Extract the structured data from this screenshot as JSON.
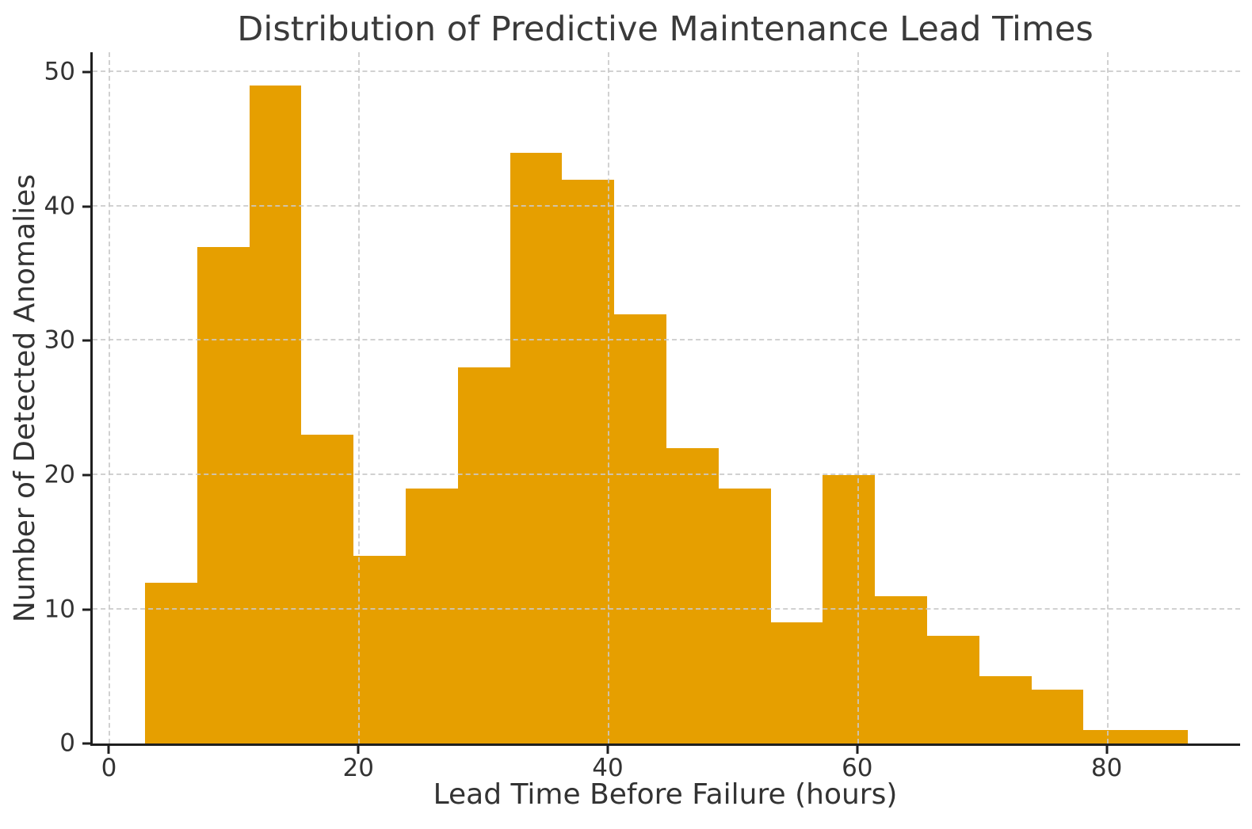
{
  "chart_data": {
    "type": "bar",
    "subtype": "histogram",
    "title": "Distribution of Predictive Maintenance Lead Times",
    "xlabel": "Lead Time Before Failure (hours)",
    "ylabel": "Number of Detected Anomalies",
    "bin_edges": [
      2.9,
      7.1,
      11.3,
      15.4,
      19.6,
      23.8,
      28.0,
      32.2,
      36.3,
      40.5,
      44.7,
      48.9,
      53.1,
      57.2,
      61.4,
      65.6,
      69.8,
      74.0,
      78.1,
      82.3,
      86.5
    ],
    "counts": [
      12,
      37,
      49,
      23,
      14,
      19,
      28,
      44,
      42,
      32,
      22,
      19,
      9,
      20,
      11,
      8,
      5,
      4,
      1,
      1
    ],
    "xticks": [
      0,
      20,
      40,
      60,
      80
    ],
    "yticks": [
      0,
      10,
      20,
      30,
      40,
      50
    ],
    "xlim": [
      -1.3,
      90.7
    ],
    "ylim": [
      0,
      51.5
    ],
    "grid": true,
    "grid_style": "dashed",
    "grid_over_bars": true,
    "legend": false,
    "colors": {
      "bar": "#E69F00",
      "grid": "#c9c9c9",
      "spine": "#1f1f1f",
      "text": "#333333",
      "background": "#ffffff"
    }
  }
}
